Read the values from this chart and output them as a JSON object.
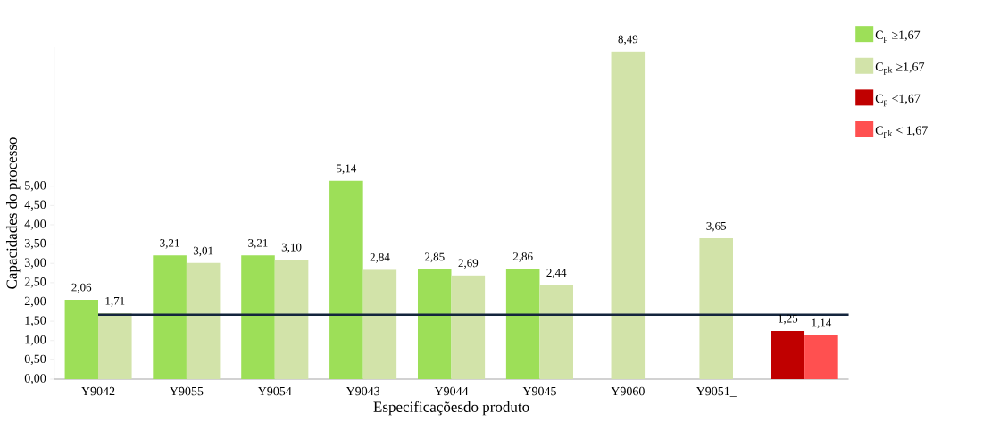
{
  "chart_data": {
    "type": "bar",
    "xlabel": "Especificaçõesdo produto",
    "ylabel": "Capacidades do processo",
    "categories": [
      "Y9042",
      "Y9055",
      "Y9054",
      "Y9043",
      "Y9044",
      "Y9045",
      "Y9060",
      "Y9051_",
      null
    ],
    "series": [
      {
        "name": "C$_{p}$ ≥1,67",
        "color": "#9ddf58",
        "values": [
          2.06,
          3.21,
          3.21,
          5.14,
          2.85,
          2.86,
          null,
          null,
          null
        ],
        "value_labels": [
          "2,06",
          "3,21",
          "3,21",
          "5,14",
          "2,85",
          "2,86",
          null,
          null,
          null
        ]
      },
      {
        "name": "C$_{pk}$ ≥1,67",
        "color": "#d2e3a9",
        "values": [
          1.71,
          3.01,
          3.1,
          2.84,
          2.69,
          2.44,
          8.49,
          3.65,
          null
        ],
        "value_labels": [
          "1,71",
          "3,01",
          "3,10",
          "2,84",
          "2,69",
          "2,44",
          "8,49",
          "3,65",
          null
        ]
      },
      {
        "name": "C$_{p}$ <1,67",
        "color": "#c00000",
        "values": [
          null,
          null,
          null,
          null,
          null,
          null,
          null,
          null,
          1.25
        ],
        "value_labels": [
          null,
          null,
          null,
          null,
          null,
          null,
          null,
          null,
          "1,25"
        ]
      },
      {
        "name": "C$_{pk}$ < 1,67",
        "color": "#ff5050",
        "values": [
          null,
          null,
          null,
          null,
          null,
          null,
          null,
          null,
          1.14
        ],
        "value_labels": [
          null,
          null,
          null,
          null,
          null,
          null,
          null,
          null,
          "1,14"
        ]
      }
    ],
    "ylim": [
      0,
      8.6
    ],
    "yticks": [
      {
        "value": 0,
        "label": "0,00"
      },
      {
        "value": 0.5,
        "label": "0,50"
      },
      {
        "value": 1,
        "label": "1,00"
      },
      {
        "value": 1.5,
        "label": "1,50"
      },
      {
        "value": 2,
        "label": "2,00"
      },
      {
        "value": 2.5,
        "label": "2,50"
      },
      {
        "value": 3,
        "label": "3,00"
      },
      {
        "value": 3.5,
        "label": "3,50"
      },
      {
        "value": 4,
        "label": "4,00"
      },
      {
        "value": 4.5,
        "label": "4,50"
      },
      {
        "value": 5,
        "label": "5,00"
      }
    ],
    "ref_lines": [
      {
        "axis": "y",
        "value": 1.67,
        "color": "#14253d"
      }
    ],
    "grid": false,
    "legend": "right"
  }
}
